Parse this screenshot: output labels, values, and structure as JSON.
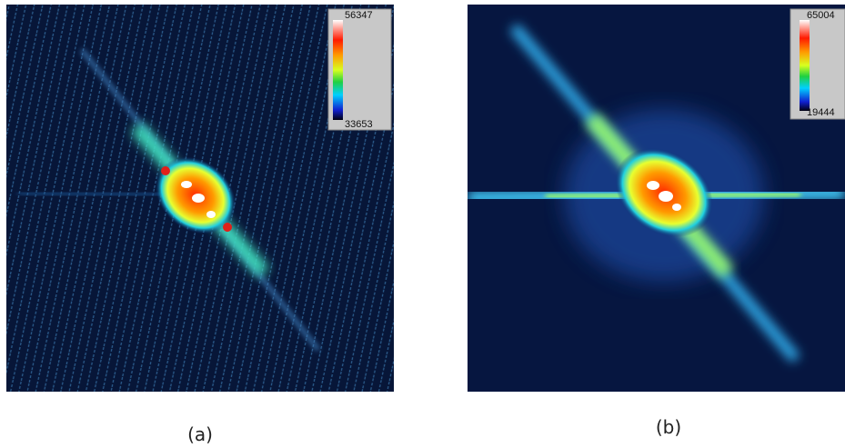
{
  "panels": [
    {
      "label": "(a)",
      "colorbar_max": "56347",
      "colorbar_min": "33653"
    },
    {
      "label": "(b)",
      "colorbar_max": "65004",
      "colorbar_min": "19444"
    }
  ]
}
